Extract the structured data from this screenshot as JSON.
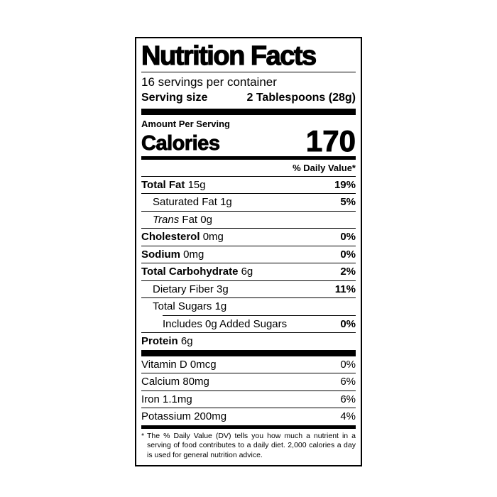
{
  "label": {
    "title": "Nutrition Facts",
    "servings_per_container": "16 servings per container",
    "serving_size": {
      "label": "Serving size",
      "value": "2 Tablespoons (28g)"
    },
    "calories": {
      "header": "Amount Per Serving",
      "label": "Calories",
      "value": "170"
    },
    "daily_value_header": "% Daily Value*",
    "nutrients": [
      {
        "name": "Total Fat",
        "amount": "15g",
        "dv": "19%"
      },
      {
        "name": "Saturated Fat",
        "amount": "1g",
        "dv": "5%"
      },
      {
        "name_italic": "Trans",
        "name": "Fat",
        "amount": "0g",
        "dv": ""
      },
      {
        "name": "Cholesterol",
        "amount": "0mg",
        "dv": "0%"
      },
      {
        "name": "Sodium",
        "amount": "0mg",
        "dv": "0%"
      },
      {
        "name": "Total Carbohydrate",
        "amount": "6g",
        "dv": "2%"
      },
      {
        "name": "Dietary Fiber",
        "amount": "3g",
        "dv": "11%"
      },
      {
        "name": "Total Sugars",
        "amount": "1g",
        "dv": ""
      },
      {
        "name": "Includes 0g Added Sugars",
        "amount": "",
        "dv": "0%"
      },
      {
        "name": "Protein",
        "amount": "6g",
        "dv": ""
      }
    ],
    "micronutrients": [
      {
        "name": "Vitamin D",
        "amount": "0mcg",
        "dv": "0%"
      },
      {
        "name": "Calcium",
        "amount": "80mg",
        "dv": "6%"
      },
      {
        "name": "Iron",
        "amount": "1.1mg",
        "dv": "6%"
      },
      {
        "name": "Potassium",
        "amount": "200mg",
        "dv": "4%"
      }
    ],
    "footnote": {
      "marker": "*",
      "text": "The % Daily Value (DV) tells you how much a nutrient in a serving of food contributes to a daily diet. 2,000 calories a day is used for general nutrition advice."
    }
  }
}
